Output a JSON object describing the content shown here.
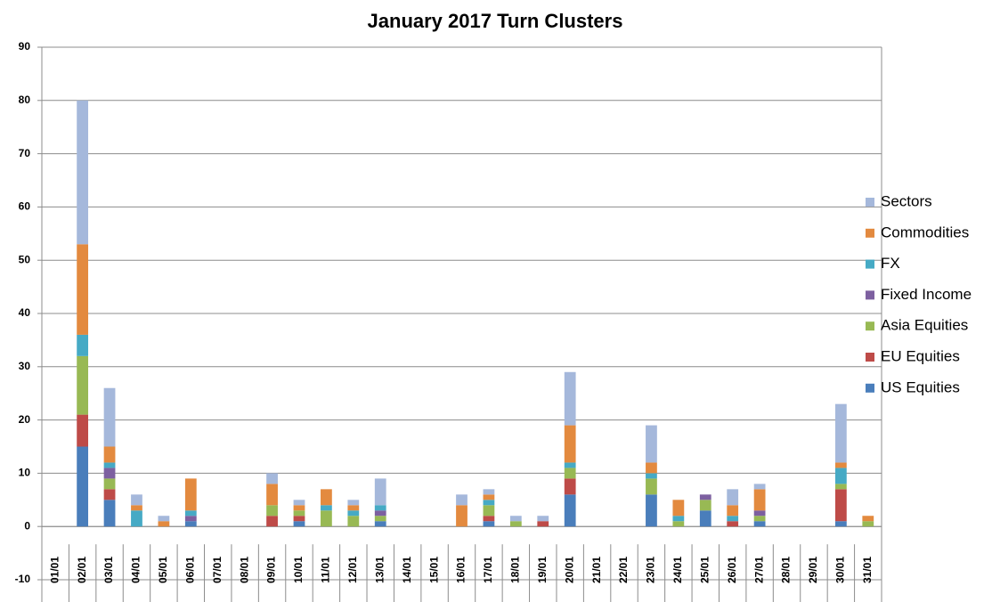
{
  "chart_data": {
    "type": "stacked-bar",
    "title": "January 2017 Turn Clusters",
    "categories": [
      "01/01",
      "02/01",
      "03/01",
      "04/01",
      "05/01",
      "06/01",
      "07/01",
      "08/01",
      "09/01",
      "10/01",
      "11/01",
      "12/01",
      "13/01",
      "14/01",
      "15/01",
      "16/01",
      "17/01",
      "18/01",
      "19/01",
      "20/01",
      "21/01",
      "22/01",
      "23/01",
      "24/01",
      "25/01",
      "26/01",
      "27/01",
      "28/01",
      "29/01",
      "30/01",
      "31/01"
    ],
    "series": [
      {
        "name": "US Equities",
        "color": "#4a7ebb",
        "values": [
          0,
          15,
          5,
          0,
          0,
          1,
          0,
          0,
          0,
          1,
          0,
          0,
          1,
          0,
          0,
          0,
          1,
          0,
          0,
          6,
          0,
          0,
          6,
          0,
          3,
          0,
          1,
          0,
          0,
          1,
          0
        ]
      },
      {
        "name": "EU Equities",
        "color": "#be4b48",
        "values": [
          0,
          6,
          2,
          0,
          0,
          0,
          0,
          0,
          2,
          1,
          0,
          0,
          0,
          0,
          0,
          0,
          1,
          0,
          1,
          3,
          0,
          0,
          0,
          0,
          0,
          1,
          0,
          0,
          0,
          6,
          0
        ]
      },
      {
        "name": "Asia Equities",
        "color": "#98b954",
        "values": [
          0,
          11,
          2,
          0,
          0,
          0,
          0,
          0,
          2,
          1,
          3,
          2,
          1,
          0,
          0,
          0,
          2,
          1,
          0,
          2,
          0,
          0,
          3,
          1,
          2,
          0,
          1,
          0,
          0,
          1,
          1
        ]
      },
      {
        "name": "Fixed Income",
        "color": "#7d60a0",
        "values": [
          0,
          0,
          2,
          0,
          0,
          1,
          0,
          0,
          0,
          0,
          0,
          0,
          1,
          0,
          0,
          0,
          0,
          0,
          0,
          0,
          0,
          0,
          0,
          0,
          1,
          0,
          1,
          0,
          0,
          0,
          0
        ]
      },
      {
        "name": "FX",
        "color": "#46aac5",
        "values": [
          0,
          4,
          1,
          3,
          0,
          1,
          0,
          0,
          0,
          0,
          1,
          1,
          1,
          0,
          0,
          0,
          1,
          0,
          0,
          1,
          0,
          0,
          1,
          1,
          0,
          1,
          0,
          0,
          0,
          3,
          0
        ]
      },
      {
        "name": "Commodities",
        "color": "#e38a3f",
        "values": [
          0,
          17,
          3,
          1,
          1,
          6,
          0,
          0,
          4,
          1,
          3,
          1,
          0,
          0,
          0,
          4,
          1,
          0,
          0,
          7,
          0,
          0,
          2,
          3,
          0,
          2,
          4,
          0,
          0,
          1,
          1
        ]
      },
      {
        "name": "Sectors",
        "color": "#a5b8db",
        "values": [
          0,
          27,
          11,
          2,
          1,
          0,
          0,
          0,
          2,
          1,
          0,
          1,
          5,
          0,
          0,
          2,
          1,
          1,
          1,
          10,
          0,
          0,
          7,
          0,
          0,
          3,
          1,
          0,
          0,
          11,
          0
        ]
      }
    ],
    "ylim": [
      -10,
      90
    ],
    "yticks": [
      -10,
      0,
      10,
      20,
      30,
      40,
      50,
      60,
      70,
      80,
      90
    ],
    "grid": true,
    "legend_position": "right"
  }
}
